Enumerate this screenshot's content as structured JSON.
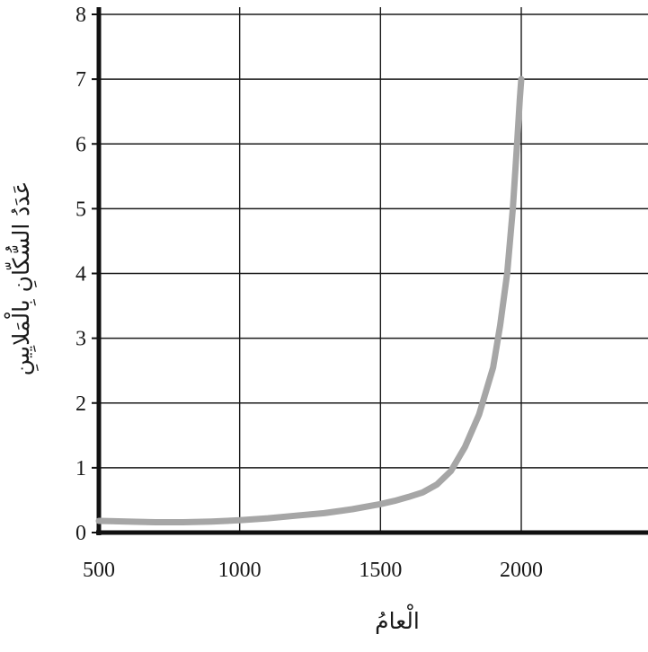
{
  "chart_data": {
    "type": "line",
    "title": "",
    "xlabel": "الْعامُ",
    "ylabel": "عَدَدُ السُّكّانِ بِالْمَلايِينِ",
    "xlim": [
      500,
      2450
    ],
    "ylim": [
      0,
      8
    ],
    "x_ticks": [
      500,
      1000,
      1500,
      2000
    ],
    "y_ticks": [
      0,
      1,
      2,
      3,
      4,
      5,
      6,
      7,
      8
    ],
    "x_gridlines": [
      500,
      1000,
      1500,
      2000
    ],
    "grid": true,
    "series": [
      {
        "color": "#a6a6a6",
        "points": [
          [
            500,
            0.18
          ],
          [
            600,
            0.17
          ],
          [
            700,
            0.16
          ],
          [
            800,
            0.16
          ],
          [
            900,
            0.17
          ],
          [
            1000,
            0.19
          ],
          [
            1100,
            0.22
          ],
          [
            1200,
            0.26
          ],
          [
            1300,
            0.3
          ],
          [
            1400,
            0.36
          ],
          [
            1500,
            0.44
          ],
          [
            1550,
            0.49
          ],
          [
            1600,
            0.55
          ],
          [
            1650,
            0.62
          ],
          [
            1700,
            0.74
          ],
          [
            1750,
            0.95
          ],
          [
            1800,
            1.32
          ],
          [
            1850,
            1.82
          ],
          [
            1900,
            2.55
          ],
          [
            1925,
            3.2
          ],
          [
            1950,
            4.0
          ],
          [
            1970,
            5.0
          ],
          [
            1985,
            6.0
          ],
          [
            1995,
            6.7
          ],
          [
            2000,
            7.0
          ]
        ]
      }
    ]
  }
}
